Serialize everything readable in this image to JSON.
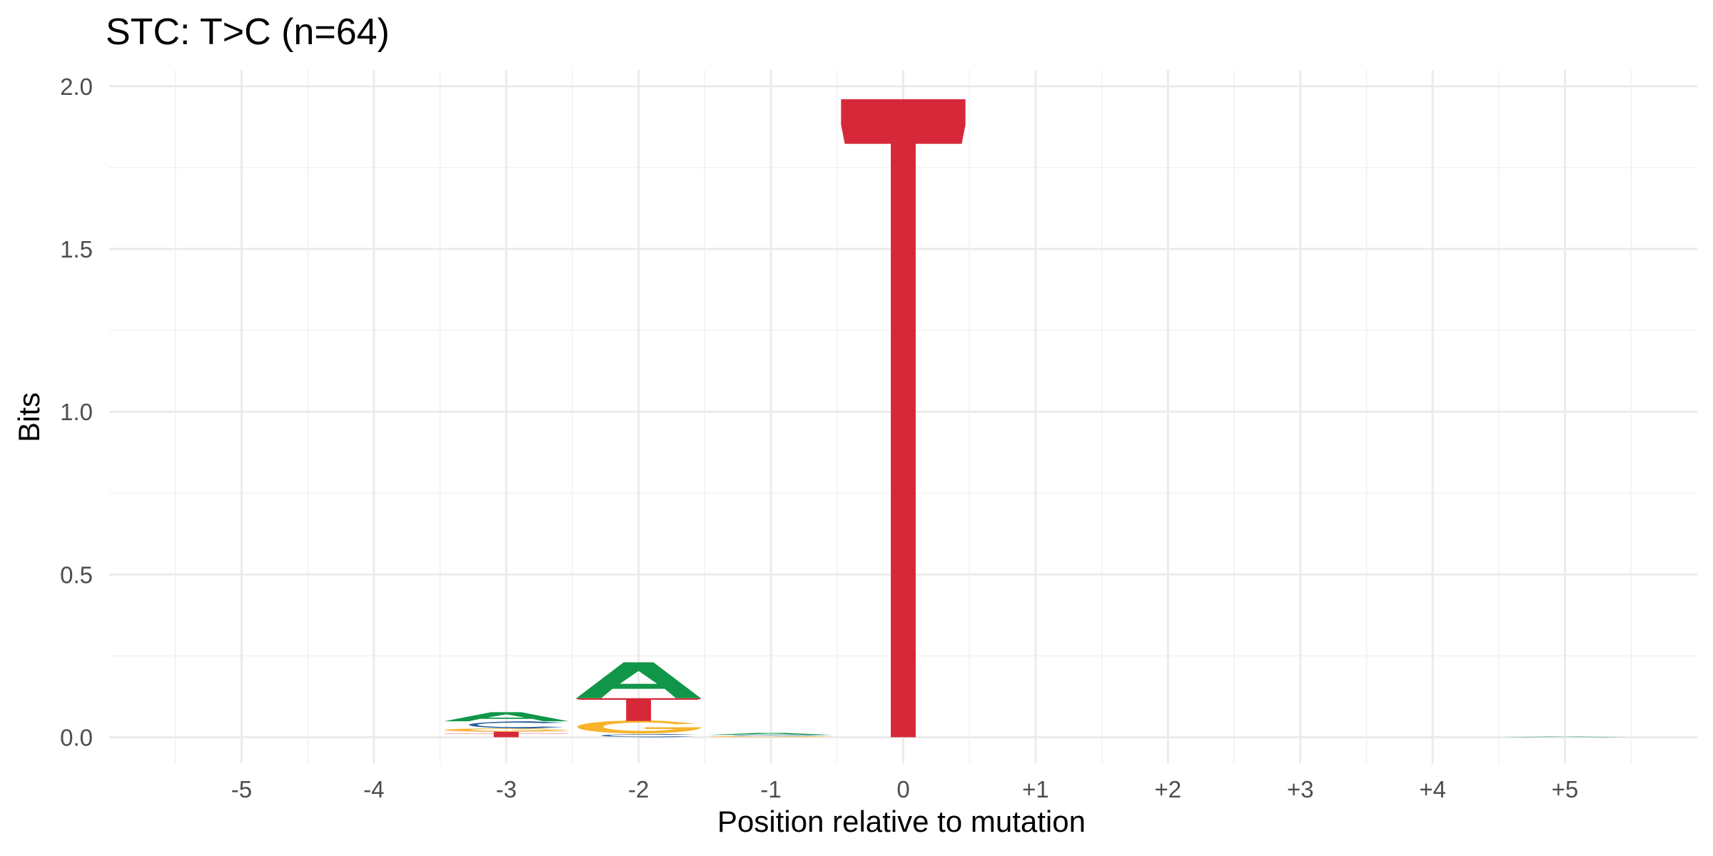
{
  "chart_data": {
    "type": "sequence-logo",
    "title": "STC: T>C (n=64)",
    "xlabel": "Position relative to mutation",
    "ylabel": "Bits",
    "x_categories": [
      "-5",
      "-4",
      "-3",
      "-2",
      "-1",
      "0",
      "+1",
      "+2",
      "+3",
      "+4",
      "+5"
    ],
    "ylim": [
      -0.08,
      2.05
    ],
    "y_ticks": [
      0.0,
      0.5,
      1.0,
      1.5,
      2.0
    ],
    "y_tick_labels": [
      "0.0",
      "0.5",
      "1.0",
      "1.5",
      "2.0"
    ],
    "grid": true,
    "legend": "none",
    "colors": {
      "A": "#109648",
      "C": "#255c99",
      "G": "#f7b32b",
      "T": "#d62839"
    },
    "positions": [
      {
        "position": "-5",
        "letters": []
      },
      {
        "position": "-4",
        "letters": []
      },
      {
        "position": "-3",
        "letters": [
          {
            "base": "T",
            "bits": 0.012
          },
          {
            "base": "T",
            "bits": 0.005
          },
          {
            "base": "G",
            "bits": 0.01
          },
          {
            "base": "C",
            "bits": 0.022
          },
          {
            "base": "A",
            "bits": 0.028
          }
        ]
      },
      {
        "position": "-2",
        "letters": [
          {
            "base": "C",
            "bits": 0.01
          },
          {
            "base": "G",
            "bits": 0.04
          },
          {
            "base": "T",
            "bits": 0.07
          },
          {
            "base": "A",
            "bits": 0.11
          }
        ]
      },
      {
        "position": "-1",
        "letters": [
          {
            "base": "G",
            "bits": 0.003
          },
          {
            "base": "C",
            "bits": 0.004
          },
          {
            "base": "A",
            "bits": 0.006
          }
        ]
      },
      {
        "position": "0",
        "letters": [
          {
            "base": "T",
            "bits": 1.96
          }
        ]
      },
      {
        "position": "+1",
        "letters": []
      },
      {
        "position": "+2",
        "letters": []
      },
      {
        "position": "+3",
        "letters": []
      },
      {
        "position": "+4",
        "letters": []
      },
      {
        "position": "+5",
        "letters": [
          {
            "base": "A",
            "bits": 0.002
          }
        ]
      }
    ]
  }
}
